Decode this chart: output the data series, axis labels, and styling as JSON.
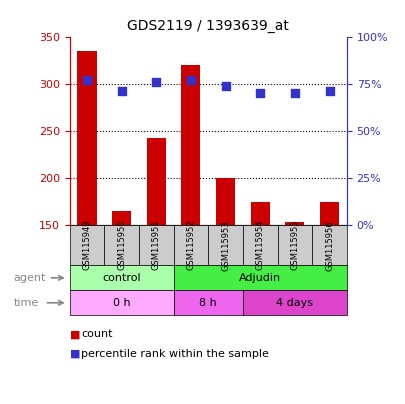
{
  "title": "GDS2119 / 1393639_at",
  "samples": [
    "GSM115949",
    "GSM115950",
    "GSM115951",
    "GSM115952",
    "GSM115953",
    "GSM115954",
    "GSM115955",
    "GSM115956"
  ],
  "counts": [
    335,
    165,
    242,
    320,
    200,
    175,
    153,
    175
  ],
  "percentiles": [
    77,
    71,
    76,
    77,
    74,
    70,
    70,
    71
  ],
  "ylim": [
    150,
    350
  ],
  "yticks_left": [
    150,
    200,
    250,
    300,
    350
  ],
  "yticks_right": [
    0,
    25,
    50,
    75,
    100
  ],
  "bar_color": "#cc0000",
  "dot_color": "#3333cc",
  "agent_groups": [
    {
      "label": "control",
      "start": 0,
      "end": 3,
      "color": "#aaffaa"
    },
    {
      "label": "Adjudin",
      "start": 3,
      "end": 8,
      "color": "#44ee44"
    }
  ],
  "time_groups": [
    {
      "label": "0 h",
      "start": 0,
      "end": 3,
      "color": "#ffaaff"
    },
    {
      "label": "8 h",
      "start": 3,
      "end": 5,
      "color": "#ee66ee"
    },
    {
      "label": "4 days",
      "start": 5,
      "end": 8,
      "color": "#dd44cc"
    }
  ],
  "grid_dotted_at": [
    200,
    250,
    300
  ],
  "left_axis_color": "#cc0000",
  "right_axis_color": "#3333cc",
  "sample_box_color": "#cccccc",
  "label_text_color": "#888888",
  "arrow_color": "#888888"
}
